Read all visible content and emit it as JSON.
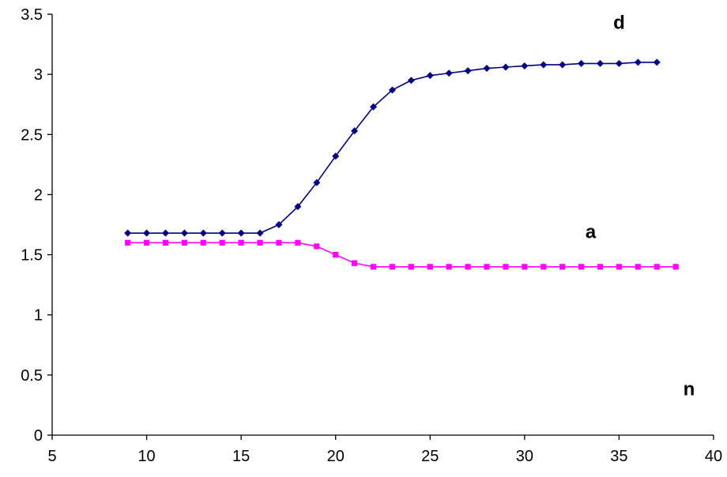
{
  "chart_data": {
    "type": "line",
    "xlim": [
      5,
      40
    ],
    "ylim": [
      0,
      3.5
    ],
    "x_ticks": [
      "5",
      "10",
      "15",
      "20",
      "25",
      "30",
      "35",
      "40"
    ],
    "y_ticks": [
      "0",
      "0.5",
      "1",
      "1.5",
      "2",
      "2.5",
      "3",
      "3.5"
    ],
    "grid": false,
    "annotations": [
      {
        "text": "d",
        "x": 35,
        "y": 3.38
      },
      {
        "text": "a",
        "x": 33.5,
        "y": 1.64
      },
      {
        "text": "n",
        "x": 38.7,
        "y": 0.33
      }
    ],
    "series": [
      {
        "label": "d",
        "color": "#000080",
        "marker": "diamond",
        "x": [
          9,
          10,
          11,
          12,
          13,
          14,
          15,
          16,
          17,
          18,
          19,
          20,
          21,
          22,
          23,
          24,
          25,
          26,
          27,
          28,
          29,
          30,
          31,
          32,
          33,
          34,
          35,
          36,
          37
        ],
        "values": [
          1.68,
          1.68,
          1.68,
          1.68,
          1.68,
          1.68,
          1.68,
          1.68,
          1.75,
          1.9,
          2.1,
          2.32,
          2.53,
          2.73,
          2.87,
          2.95,
          2.99,
          3.01,
          3.03,
          3.05,
          3.06,
          3.07,
          3.08,
          3.08,
          3.09,
          3.09,
          3.09,
          3.1,
          3.1
        ]
      },
      {
        "label": "a",
        "color": "#ff00ff",
        "marker": "square",
        "x": [
          9,
          10,
          11,
          12,
          13,
          14,
          15,
          16,
          17,
          18,
          19,
          20,
          21,
          22,
          23,
          24,
          25,
          26,
          27,
          28,
          29,
          30,
          31,
          32,
          33,
          34,
          35,
          36,
          37,
          38
        ],
        "values": [
          1.6,
          1.6,
          1.6,
          1.6,
          1.6,
          1.6,
          1.6,
          1.6,
          1.6,
          1.6,
          1.57,
          1.5,
          1.43,
          1.4,
          1.4,
          1.4,
          1.4,
          1.4,
          1.4,
          1.4,
          1.4,
          1.4,
          1.4,
          1.4,
          1.4,
          1.4,
          1.4,
          1.4,
          1.4,
          1.4
        ]
      }
    ]
  }
}
